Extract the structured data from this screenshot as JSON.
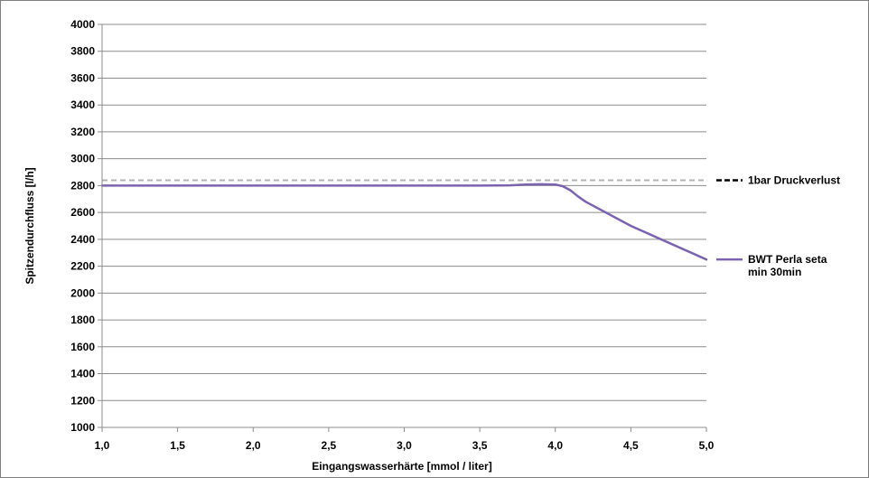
{
  "chart_data": {
    "type": "line",
    "xlabel": "Eingangswasserhärte [mmol / liter]",
    "ylabel": "Spitzendurchfluss [l/h]",
    "xlim": [
      1.0,
      5.0
    ],
    "ylim": [
      1000,
      4000
    ],
    "x_ticks": [
      "1,0",
      "1,5",
      "2,0",
      "2,5",
      "3,0",
      "3,5",
      "4,0",
      "4,5",
      "5,0"
    ],
    "y_ticks": [
      "1000",
      "1200",
      "1400",
      "1600",
      "1800",
      "2000",
      "2200",
      "2400",
      "2600",
      "2800",
      "3000",
      "3200",
      "3400",
      "3600",
      "3800",
      "4000"
    ],
    "grid": "horizontal",
    "legend_position": "right",
    "series": [
      {
        "name": "1bar Druckverlust",
        "legend_lines": [
          "1bar Druckverlust"
        ],
        "style": "dashed",
        "color": "#b3b3b3",
        "legend_color": "#000000",
        "x": [
          1.0,
          5.0
        ],
        "y": [
          2840,
          2840
        ]
      },
      {
        "name": "BWT Perla seta min 30min",
        "legend_lines": [
          "BWT Perla seta",
          "min 30min"
        ],
        "style": "solid",
        "color": "#7b63b0",
        "legend_color": "#7b63b0",
        "x": [
          1.0,
          1.5,
          2.0,
          2.5,
          3.0,
          3.5,
          3.7,
          3.8,
          3.9,
          4.0,
          4.05,
          4.1,
          4.15,
          4.2,
          4.5,
          5.0
        ],
        "y": [
          2800,
          2800,
          2800,
          2800,
          2800,
          2800,
          2802,
          2808,
          2810,
          2808,
          2795,
          2765,
          2720,
          2680,
          2500,
          2250
        ]
      }
    ]
  }
}
